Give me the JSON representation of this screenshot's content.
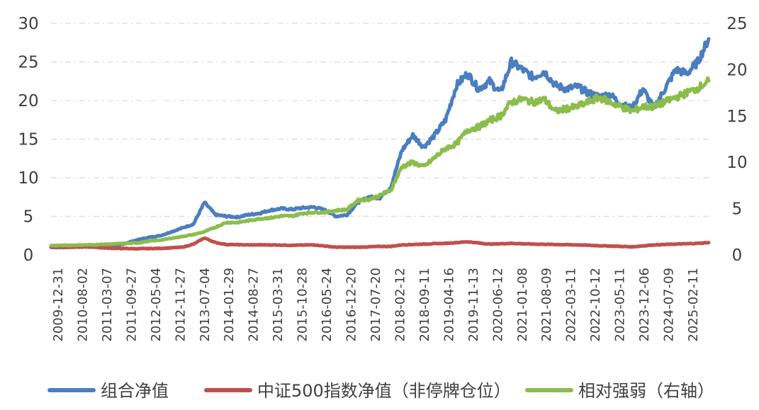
{
  "chart_data": {
    "type": "line",
    "title": "",
    "left_axis": {
      "ylim": [
        0,
        30
      ],
      "ticks": [
        0,
        5,
        10,
        15,
        20,
        25,
        30
      ]
    },
    "right_axis": {
      "ylim": [
        0,
        25
      ],
      "ticks": [
        0,
        5,
        10,
        15,
        20,
        25
      ]
    },
    "grid": "horizontal-dashed",
    "legend_position": "bottom",
    "x_tick_labels": [
      "2009-12-31",
      "2010-08-02",
      "2011-03-07",
      "2011-09-27",
      "2012-05-04",
      "2012-11-27",
      "2013-07-04",
      "2014-01-29",
      "2014-08-27",
      "2015-03-31",
      "2015-10-28",
      "2016-05-24",
      "2016-12-20",
      "2017-07-20",
      "2018-02-12",
      "2018-09-11",
      "2019-04-16",
      "2019-11-13",
      "2020-06-12",
      "2021-01-08",
      "2021-08-09",
      "2022-03-11",
      "2022-10-12",
      "2023-05-11",
      "2023-12-06",
      "2024-07-09",
      "2025-02-11"
    ],
    "series": [
      {
        "name": "组合净值",
        "axis": "left",
        "color": "#4a7ebf",
        "points": [
          [
            0,
            1.0
          ],
          [
            1,
            0.95
          ],
          [
            2,
            1.05
          ],
          [
            3,
            1.1
          ],
          [
            4,
            1.0
          ],
          [
            5,
            0.9
          ],
          [
            6,
            1.1
          ],
          [
            7,
            1.6
          ],
          [
            8,
            2.0
          ],
          [
            9,
            2.3
          ],
          [
            10,
            2.5
          ],
          [
            11,
            3.0
          ],
          [
            12,
            3.5
          ],
          [
            13,
            4.0
          ],
          [
            14,
            6.8
          ],
          [
            15,
            5.2
          ],
          [
            16,
            5.0
          ],
          [
            17,
            4.9
          ],
          [
            18,
            5.2
          ],
          [
            19,
            5.4
          ],
          [
            20,
            5.8
          ],
          [
            21,
            6.0
          ],
          [
            22,
            5.9
          ],
          [
            23,
            6.1
          ],
          [
            24,
            6.2
          ],
          [
            25,
            5.8
          ],
          [
            26,
            5.0
          ],
          [
            27,
            5.2
          ],
          [
            28,
            6.8
          ],
          [
            29,
            7.5
          ],
          [
            30,
            7.4
          ],
          [
            31,
            8.8
          ],
          [
            32,
            13.5
          ],
          [
            33,
            15.5
          ],
          [
            34,
            14.0
          ],
          [
            35,
            15.5
          ],
          [
            36,
            17.5
          ],
          [
            37,
            22.0
          ],
          [
            38,
            23.5
          ],
          [
            39,
            21.5
          ],
          [
            40,
            22.5
          ],
          [
            41,
            21.0
          ],
          [
            42,
            25.0
          ],
          [
            43,
            24.0
          ],
          [
            44,
            23.0
          ],
          [
            45,
            23.8
          ],
          [
            46,
            22.0
          ],
          [
            47,
            21.5
          ],
          [
            48,
            21.8
          ],
          [
            49,
            21.0
          ],
          [
            50,
            20.5
          ],
          [
            51,
            20.8
          ],
          [
            52,
            19.5
          ],
          [
            53,
            19.0
          ],
          [
            54,
            21.5
          ],
          [
            55,
            19.0
          ],
          [
            56,
            21.5
          ],
          [
            57,
            24.0
          ],
          [
            58,
            23.5
          ],
          [
            59,
            25.0
          ],
          [
            60,
            28.0
          ]
        ]
      },
      {
        "name": "中证500指数净值（非停牌仓位）",
        "axis": "left",
        "color": "#c0504d",
        "points": [
          [
            0,
            1.0
          ],
          [
            2,
            1.0
          ],
          [
            4,
            1.05
          ],
          [
            5,
            0.9
          ],
          [
            6,
            0.85
          ],
          [
            8,
            0.8
          ],
          [
            10,
            0.85
          ],
          [
            12,
            1.0
          ],
          [
            13,
            1.4
          ],
          [
            14,
            2.2
          ],
          [
            15,
            1.6
          ],
          [
            16,
            1.35
          ],
          [
            18,
            1.3
          ],
          [
            20,
            1.3
          ],
          [
            22,
            1.25
          ],
          [
            24,
            1.3
          ],
          [
            26,
            1.0
          ],
          [
            28,
            1.0
          ],
          [
            30,
            1.1
          ],
          [
            31,
            1.1
          ],
          [
            32,
            1.3
          ],
          [
            34,
            1.4
          ],
          [
            36,
            1.5
          ],
          [
            37,
            1.6
          ],
          [
            38,
            1.7
          ],
          [
            40,
            1.4
          ],
          [
            42,
            1.5
          ],
          [
            44,
            1.4
          ],
          [
            46,
            1.35
          ],
          [
            48,
            1.3
          ],
          [
            50,
            1.2
          ],
          [
            52,
            1.1
          ],
          [
            53,
            1.05
          ],
          [
            55,
            1.3
          ],
          [
            57,
            1.4
          ],
          [
            59,
            1.5
          ],
          [
            60,
            1.6
          ]
        ]
      },
      {
        "name": "相对强弱（右轴）",
        "axis": "right",
        "color": "#8cbd4c",
        "points": [
          [
            0,
            1.0
          ],
          [
            2,
            1.05
          ],
          [
            4,
            1.1
          ],
          [
            6,
            1.2
          ],
          [
            8,
            1.3
          ],
          [
            9,
            1.5
          ],
          [
            10,
            1.6
          ],
          [
            11,
            1.8
          ],
          [
            12,
            2.0
          ],
          [
            13,
            2.2
          ],
          [
            14,
            2.5
          ],
          [
            15,
            3.0
          ],
          [
            16,
            3.5
          ],
          [
            17,
            3.5
          ],
          [
            18,
            3.7
          ],
          [
            19,
            3.9
          ],
          [
            20,
            4.0
          ],
          [
            21,
            4.2
          ],
          [
            22,
            4.2
          ],
          [
            23,
            4.5
          ],
          [
            24,
            4.6
          ],
          [
            25,
            4.6
          ],
          [
            26,
            4.8
          ],
          [
            27,
            4.9
          ],
          [
            28,
            5.9
          ],
          [
            29,
            6.0
          ],
          [
            30,
            6.4
          ],
          [
            31,
            7.0
          ],
          [
            32,
            9.5
          ],
          [
            33,
            10.0
          ],
          [
            34,
            9.5
          ],
          [
            35,
            10.5
          ],
          [
            36,
            11.5
          ],
          [
            37,
            12.0
          ],
          [
            38,
            13.5
          ],
          [
            39,
            13.8
          ],
          [
            40,
            14.5
          ],
          [
            41,
            15.0
          ],
          [
            42,
            16.5
          ],
          [
            43,
            16.8
          ],
          [
            44,
            16.5
          ],
          [
            45,
            16.8
          ],
          [
            46,
            15.5
          ],
          [
            47,
            15.8
          ],
          [
            48,
            16.0
          ],
          [
            49,
            16.5
          ],
          [
            50,
            17.0
          ],
          [
            51,
            16.5
          ],
          [
            52,
            16.0
          ],
          [
            53,
            15.5
          ],
          [
            54,
            16.0
          ],
          [
            55,
            16.0
          ],
          [
            56,
            16.5
          ],
          [
            57,
            17.0
          ],
          [
            58,
            17.5
          ],
          [
            59,
            18.0
          ],
          [
            60,
            18.8
          ]
        ]
      }
    ]
  }
}
